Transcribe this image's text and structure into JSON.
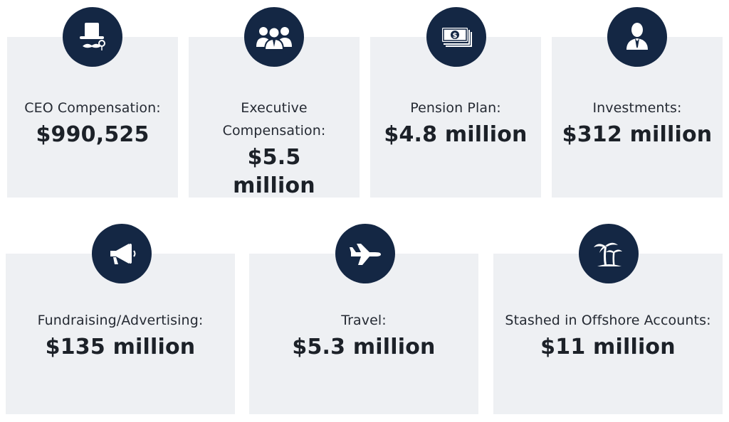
{
  "colors": {
    "badge": "#142744",
    "card": "#eef0f3",
    "text": "#1f2530",
    "icon": "#ffffff"
  },
  "items": [
    {
      "icon": "top-hat-monocle-mustache-icon",
      "label": "CEO Compensation:",
      "amount": "$990,525"
    },
    {
      "icon": "people-group-icon",
      "label": "Executive Compensation:",
      "amount": "$5.5 million"
    },
    {
      "icon": "money-bills-icon",
      "label": "Pension Plan:",
      "amount": "$4.8 million"
    },
    {
      "icon": "businessman-icon",
      "label": "Investments:",
      "amount": "$312 million"
    },
    {
      "icon": "megaphone-icon",
      "label": "Fundraising/Advertising:",
      "amount": "$135 million"
    },
    {
      "icon": "airplane-icon",
      "label": "Travel:",
      "amount": "$5.3 million"
    },
    {
      "icon": "palm-trees-icon",
      "label": "Stashed in Offshore Accounts:",
      "amount": "$11 million"
    }
  ]
}
